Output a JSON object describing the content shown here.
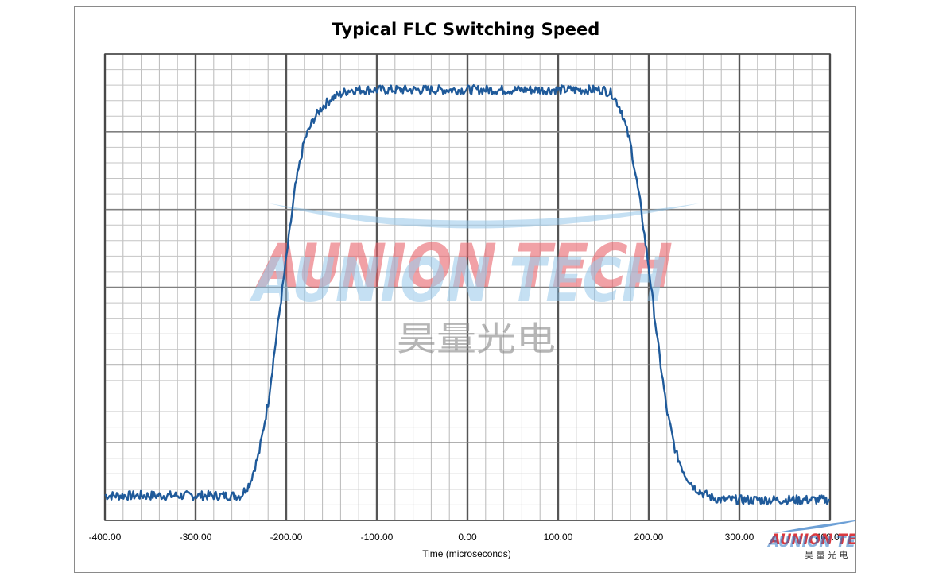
{
  "chart_data": {
    "type": "line",
    "title": "Typical FLC Switching Speed",
    "xlabel": "Time (microseconds)",
    "ylabel": "",
    "xlim": [
      -400,
      400
    ],
    "ylim": [
      0,
      1
    ],
    "x_ticks": [
      "-400.00",
      "-300.00",
      "-200.00",
      "-100.00",
      "0.00",
      "100.00",
      "200.00",
      "300.00",
      "400.00"
    ],
    "grid": "major and minor",
    "legend": "none",
    "series": [
      {
        "color": "#1f5a9a",
        "x": [
          -400,
          -250,
          -240,
          -230,
          -220,
          -210,
          -200,
          -190,
          -180,
          -170,
          -160,
          -150,
          -140,
          -130,
          -120,
          -100,
          0,
          100,
          150,
          160,
          170,
          180,
          190,
          200,
          210,
          220,
          230,
          240,
          250,
          260,
          270,
          280,
          300,
          400
        ],
        "y": [
          0.04,
          0.04,
          0.07,
          0.14,
          0.26,
          0.43,
          0.6,
          0.77,
          0.88,
          0.93,
          0.96,
          0.98,
          0.99,
          1.0,
          1.0,
          1.0,
          1.0,
          1.0,
          1.0,
          0.99,
          0.95,
          0.87,
          0.74,
          0.58,
          0.4,
          0.24,
          0.14,
          0.09,
          0.06,
          0.045,
          0.035,
          0.03,
          0.03,
          0.03
        ]
      }
    ]
  },
  "watermark": {
    "brand": "AUNION TECH",
    "chinese": "昊量光电",
    "colors": {
      "red": "#e8636b",
      "blue": "#8cc2e6"
    }
  },
  "logo": {
    "brand": "AUNION TECH",
    "chinese": "昊 量 光 电",
    "colors": {
      "red": "#d9383f",
      "blue": "#2f78c4"
    }
  }
}
